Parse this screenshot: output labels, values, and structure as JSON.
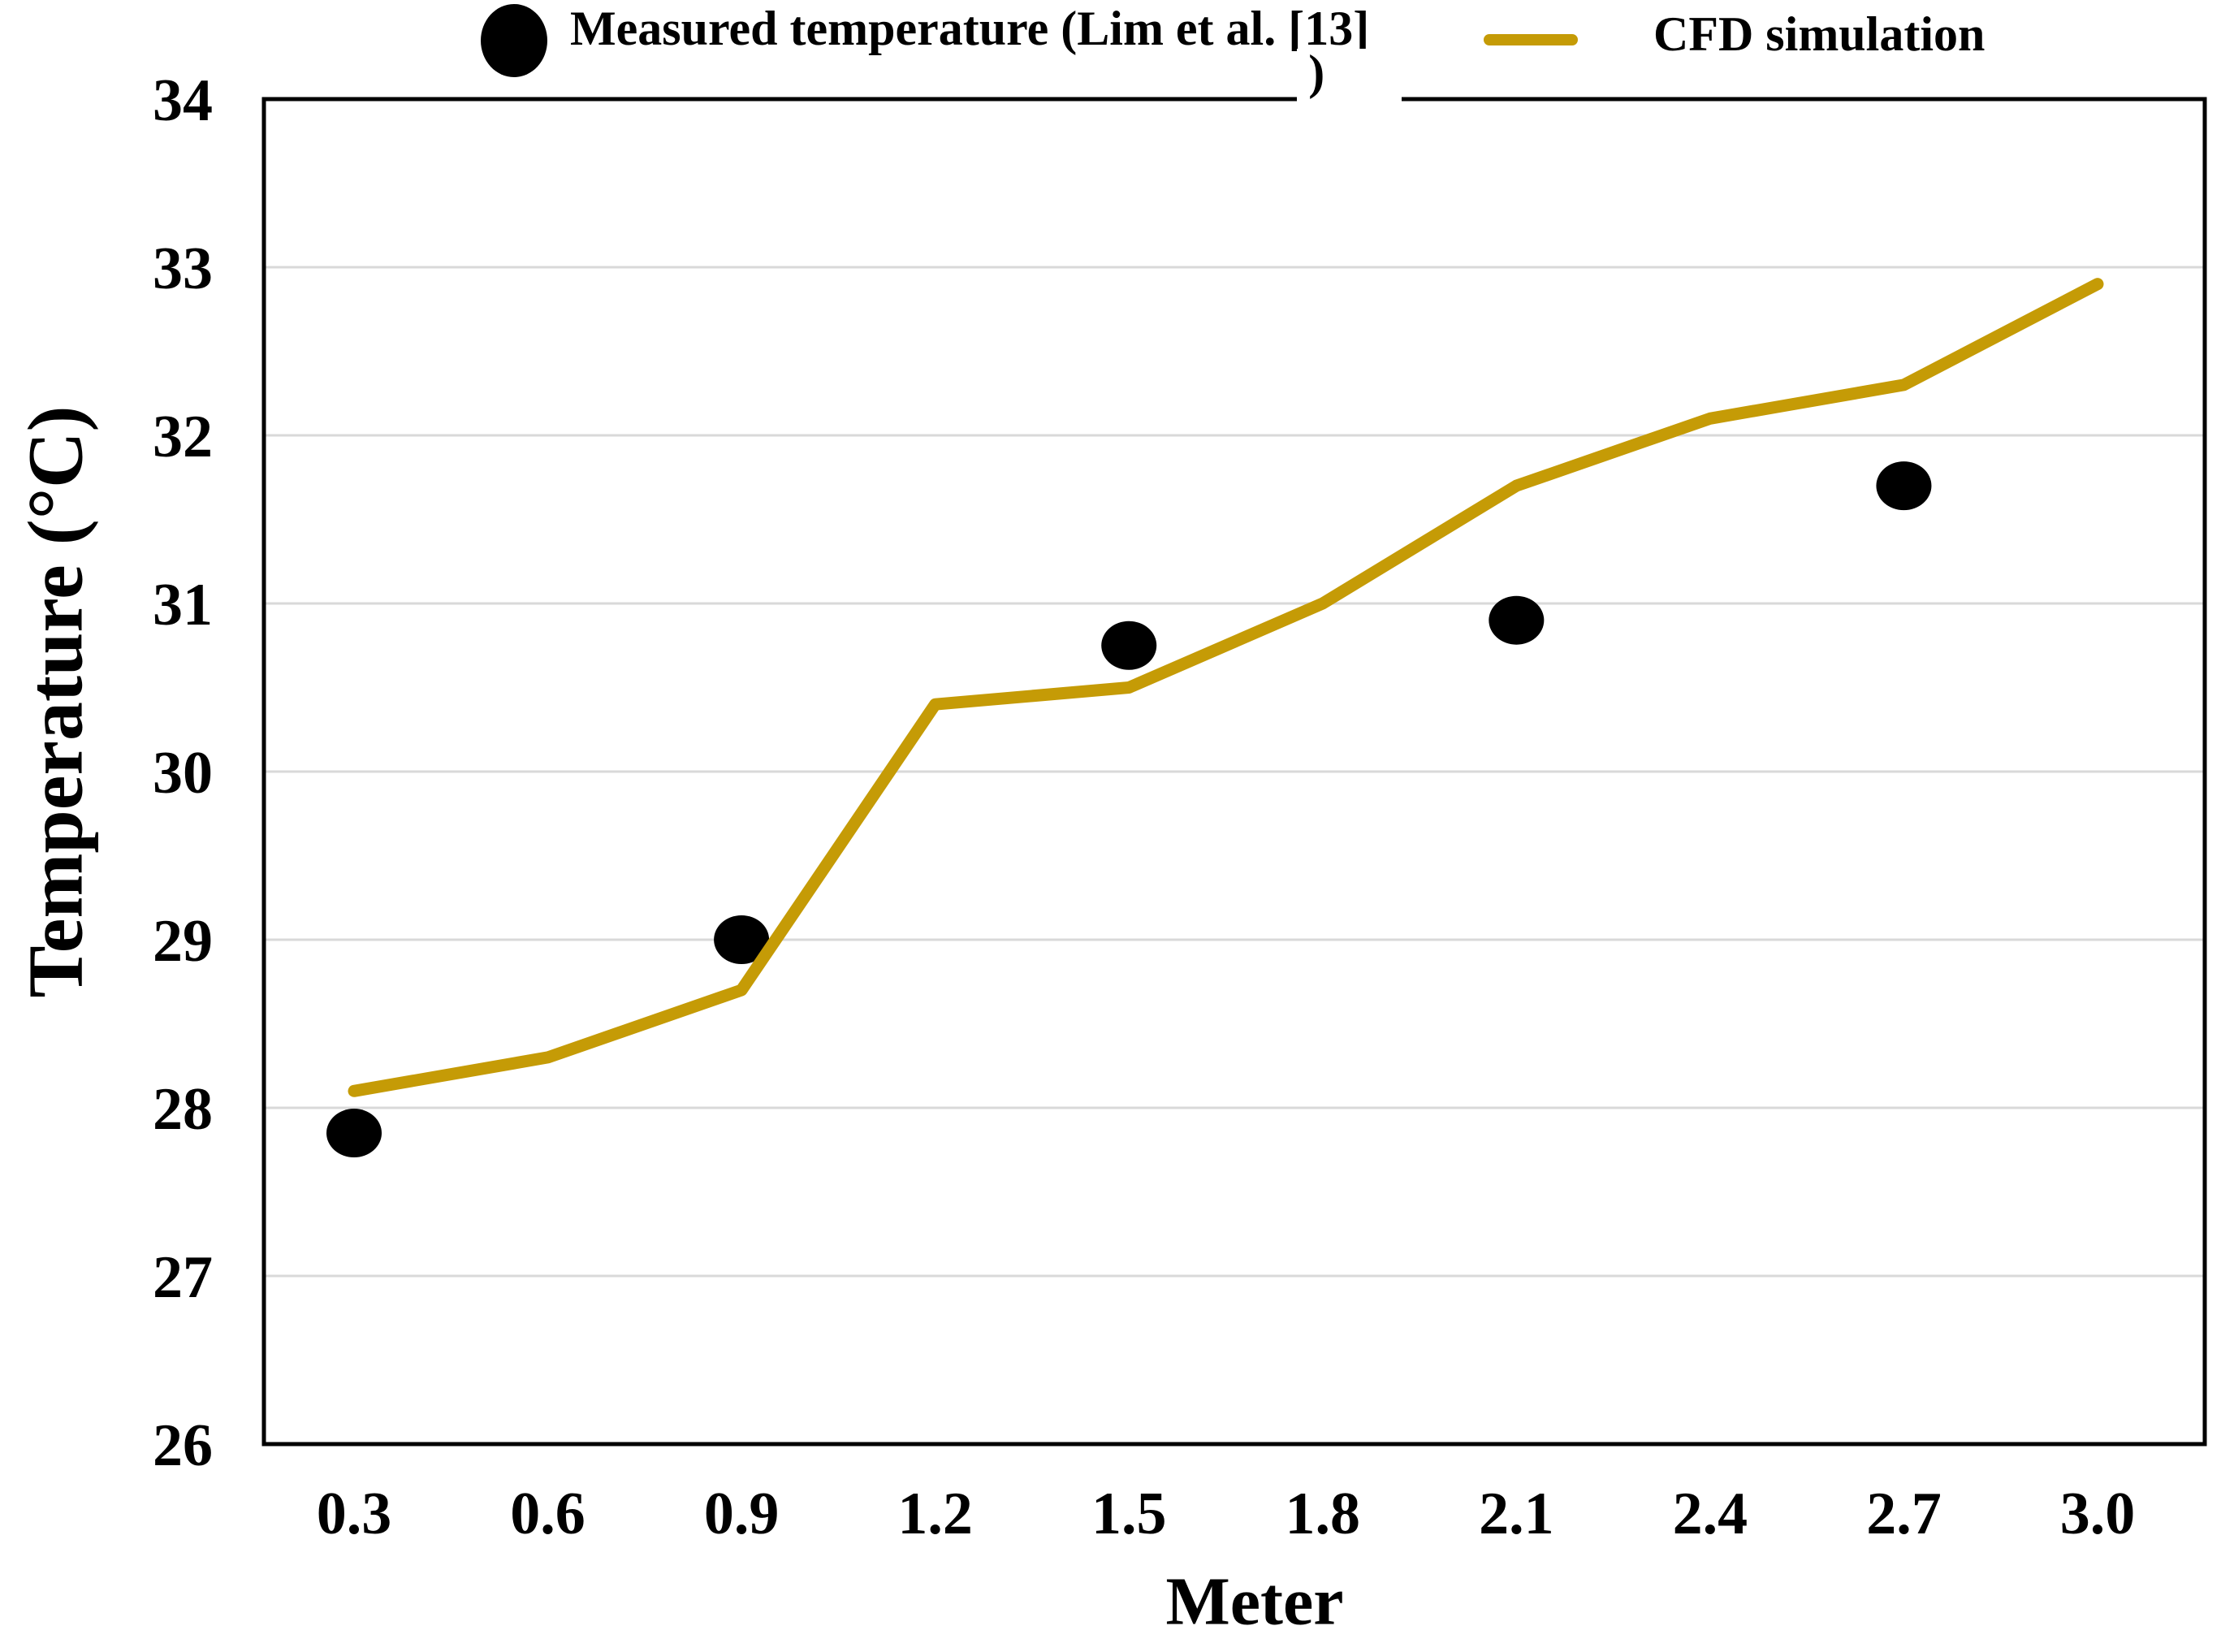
{
  "figure": {
    "background": "#FFFFFF",
    "frame_color": "#000000"
  },
  "legend": {
    "position": "top",
    "items": [
      {
        "label": "Measured temperature (Lim et al. [13])",
        "label_line1": "Measured temperature (Lim et al. [13]",
        "label_line2": ")",
        "marker": "filled-circle",
        "color": "#000000"
      },
      {
        "label": "CFD simulation",
        "marker": "line",
        "color": "#C59B06"
      }
    ]
  },
  "chart_data": {
    "type": "line",
    "title": "",
    "xlabel": "Meter",
    "ylabel": "Temperature (°C)",
    "x_categories": [
      0.3,
      0.6,
      0.9,
      1.2,
      1.5,
      1.8,
      2.1,
      2.4,
      2.7,
      3.0
    ],
    "x_tick_labels": [
      "0.3",
      "0.6",
      "0.9",
      "1.2",
      "1.5",
      "1.8",
      "2.1",
      "2.4",
      "2.7",
      "3.0"
    ],
    "xlim_categories": true,
    "ylim": [
      26,
      34
    ],
    "y_ticks": [
      26,
      27,
      28,
      29,
      30,
      31,
      32,
      33,
      34
    ],
    "grid": "horizontal",
    "gridline_color": "#D9D9D9",
    "legend_position": "top",
    "series": [
      {
        "name": "Measured temperature (Lim et al. [13])",
        "type": "scatter",
        "marker": "circle",
        "color": "#000000",
        "x": [
          0.3,
          0.9,
          1.5,
          2.1,
          2.7
        ],
        "values": [
          27.85,
          29.0,
          30.75,
          30.9,
          31.7
        ]
      },
      {
        "name": "CFD simulation",
        "type": "line",
        "color": "#C59B06",
        "x": [
          0.3,
          0.6,
          0.9,
          1.2,
          1.5,
          1.8,
          2.1,
          2.4,
          2.7,
          3.0
        ],
        "values": [
          28.1,
          28.3,
          28.7,
          30.4,
          30.5,
          31.0,
          31.7,
          32.1,
          32.3,
          32.9
        ]
      }
    ]
  }
}
